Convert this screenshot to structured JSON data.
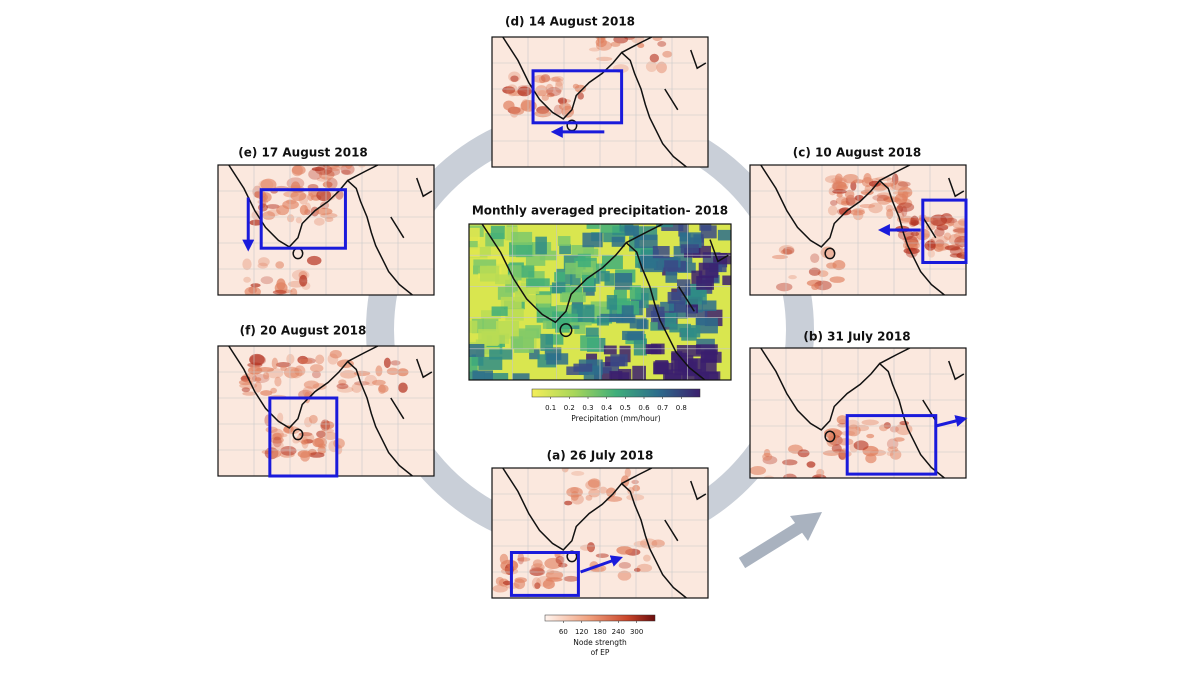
{
  "center": {
    "title": "Monthly averaged precipitation- 2018",
    "colorbar": {
      "ticks": [
        0.1,
        0.2,
        0.3,
        0.4,
        0.5,
        0.6,
        0.7,
        0.8
      ],
      "label": "Precipitation (mm/hour)"
    }
  },
  "panels": [
    {
      "title": "(d) 14 August 2018"
    },
    {
      "title": "(e) 17 August 2018"
    },
    {
      "title": "(c) 10 August 2018"
    },
    {
      "title": "(f) 20 August 2018"
    },
    {
      "title": "(b) 31 July 2018"
    },
    {
      "title": "(a) 26 July 2018"
    }
  ],
  "colorbar": {
    "ticks": [
      60,
      120,
      180,
      240,
      300
    ],
    "label": [
      "Node strength",
      "of EP"
    ]
  }
}
